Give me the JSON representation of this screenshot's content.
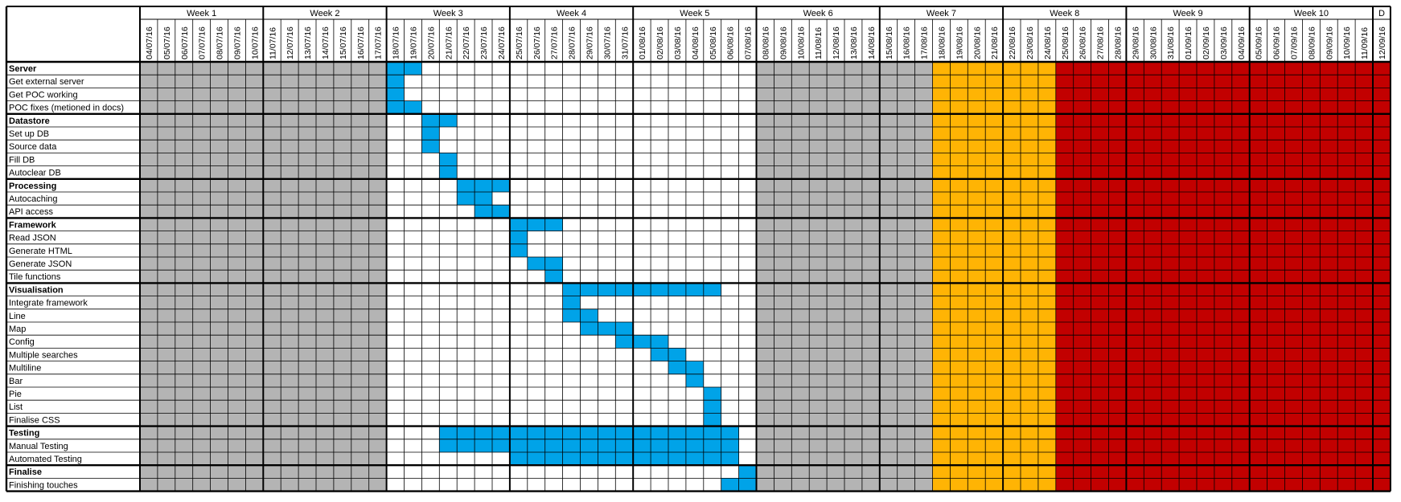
{
  "colors": {
    "grey": "#b4b4b4",
    "blue": "#00a3e8",
    "orange": "#ffb404",
    "red": "#c20000",
    "white": "#ffffff",
    "grid": "#000000"
  },
  "chart_data": {
    "type": "table",
    "title": "",
    "weeks": [
      "Week 1",
      "Week 2",
      "Week 3",
      "Week 4",
      "Week 5",
      "Week 6",
      "Week 7",
      "Week 8",
      "Week 9",
      "Week 10",
      "D"
    ],
    "dates": [
      "04/07/16",
      "05/07/16",
      "06/07/16",
      "07/07/16",
      "08/07/16",
      "09/07/16",
      "10/07/16",
      "11/07/16",
      "12/07/16",
      "13/07/16",
      "14/07/16",
      "15/07/16",
      "16/07/16",
      "17/07/16",
      "18/07/16",
      "19/07/16",
      "20/07/16",
      "21/07/16",
      "22/07/16",
      "23/07/16",
      "24/07/16",
      "25/07/16",
      "26/07/16",
      "27/07/16",
      "28/07/16",
      "29/07/16",
      "30/07/16",
      "31/07/16",
      "01/08/16",
      "02/08/16",
      "03/08/16",
      "04/08/16",
      "05/08/16",
      "06/08/16",
      "07/08/16",
      "08/08/16",
      "09/08/16",
      "10/08/16",
      "11/08/16",
      "12/08/16",
      "13/08/16",
      "14/08/16",
      "15/08/16",
      "16/08/16",
      "17/08/16",
      "18/08/16",
      "19/08/16",
      "20/08/16",
      "21/08/16",
      "22/08/16",
      "23/08/16",
      "24/08/16",
      "25/08/16",
      "26/08/16",
      "27/08/16",
      "28/08/16",
      "29/08/16",
      "30/08/16",
      "31/08/16",
      "01/09/16",
      "02/09/16",
      "03/09/16",
      "04/09/16",
      "05/09/16",
      "06/09/16",
      "07/09/16",
      "08/09/16",
      "09/09/16",
      "10/09/16",
      "11/09/16",
      "12/09/16"
    ],
    "column_fill": [
      "grey",
      "grey",
      "grey",
      "grey",
      "grey",
      "grey",
      "grey",
      "grey",
      "grey",
      "grey",
      "grey",
      "grey",
      "grey",
      "grey",
      "white",
      "white",
      "white",
      "white",
      "white",
      "white",
      "white",
      "white",
      "white",
      "white",
      "white",
      "white",
      "white",
      "white",
      "white",
      "white",
      "white",
      "white",
      "white",
      "white",
      "white",
      "grey",
      "grey",
      "grey",
      "grey",
      "grey",
      "grey",
      "grey",
      "grey",
      "grey",
      "grey",
      "orange",
      "orange",
      "orange",
      "orange",
      "orange",
      "orange",
      "orange",
      "red",
      "red",
      "red",
      "red",
      "red",
      "red",
      "red",
      "red",
      "red",
      "red",
      "red",
      "red",
      "red",
      "red",
      "red",
      "red",
      "red",
      "red",
      "red"
    ],
    "groups": [
      {
        "name": "Server",
        "header_bar": [
          [
            14,
            15
          ]
        ],
        "tasks": [
          {
            "name": "Get external server",
            "bar": [
              [
                14,
                14
              ]
            ]
          },
          {
            "name": "Get POC working",
            "bar": [
              [
                14,
                14
              ]
            ]
          },
          {
            "name": "POC fixes (metioned in docs)",
            "bar": [
              [
                14,
                15
              ]
            ]
          }
        ]
      },
      {
        "name": "Datastore",
        "header_bar": [
          [
            16,
            17
          ]
        ],
        "tasks": [
          {
            "name": "Set up DB",
            "bar": [
              [
                16,
                16
              ]
            ]
          },
          {
            "name": "Source data",
            "bar": [
              [
                16,
                16
              ]
            ]
          },
          {
            "name": "Fill DB",
            "bar": [
              [
                17,
                17
              ]
            ]
          },
          {
            "name": "Autoclear DB",
            "bar": [
              [
                17,
                17
              ]
            ]
          }
        ]
      },
      {
        "name": "Processing",
        "header_bar": [
          [
            18,
            20
          ]
        ],
        "tasks": [
          {
            "name": "Autocaching",
            "bar": [
              [
                18,
                19
              ]
            ]
          },
          {
            "name": "API access",
            "bar": [
              [
                19,
                20
              ]
            ]
          }
        ]
      },
      {
        "name": "Framework",
        "header_bar": [
          [
            21,
            23
          ]
        ],
        "tasks": [
          {
            "name": "Read JSON",
            "bar": [
              [
                21,
                21
              ]
            ]
          },
          {
            "name": "Generate HTML",
            "bar": [
              [
                21,
                21
              ]
            ]
          },
          {
            "name": "Generate JSON",
            "bar": [
              [
                22,
                23
              ]
            ]
          },
          {
            "name": "Tile functions",
            "bar": [
              [
                23,
                23
              ]
            ]
          }
        ]
      },
      {
        "name": "Visualisation",
        "header_bar": [
          [
            24,
            32
          ]
        ],
        "tasks": [
          {
            "name": "Integrate framework",
            "bar": [
              [
                24,
                24
              ]
            ]
          },
          {
            "name": "Line",
            "bar": [
              [
                24,
                25
              ]
            ]
          },
          {
            "name": "Map",
            "bar": [
              [
                25,
                27
              ]
            ]
          },
          {
            "name": "Config",
            "bar": [
              [
                27,
                29
              ]
            ]
          },
          {
            "name": "Multiple searches",
            "bar": [
              [
                29,
                30
              ]
            ]
          },
          {
            "name": "Multiline",
            "bar": [
              [
                30,
                31
              ]
            ]
          },
          {
            "name": "Bar",
            "bar": [
              [
                31,
                31
              ]
            ]
          },
          {
            "name": "Pie",
            "bar": [
              [
                32,
                32
              ]
            ]
          },
          {
            "name": "List",
            "bar": [
              [
                32,
                32
              ]
            ]
          },
          {
            "name": "Finalise CSS",
            "bar": [
              [
                32,
                32
              ]
            ]
          }
        ]
      },
      {
        "name": "Testing",
        "header_bar": [
          [
            17,
            33
          ]
        ],
        "tasks": [
          {
            "name": "Manual Testing",
            "bar": [
              [
                17,
                33
              ]
            ]
          },
          {
            "name": "Automated Testing",
            "bar": [
              [
                21,
                33
              ]
            ]
          }
        ]
      },
      {
        "name": "Finalise",
        "header_bar": [
          [
            34,
            34
          ]
        ],
        "tasks": [
          {
            "name": "Finishing touches",
            "bar": [
              [
                33,
                34
              ]
            ]
          }
        ]
      }
    ]
  }
}
